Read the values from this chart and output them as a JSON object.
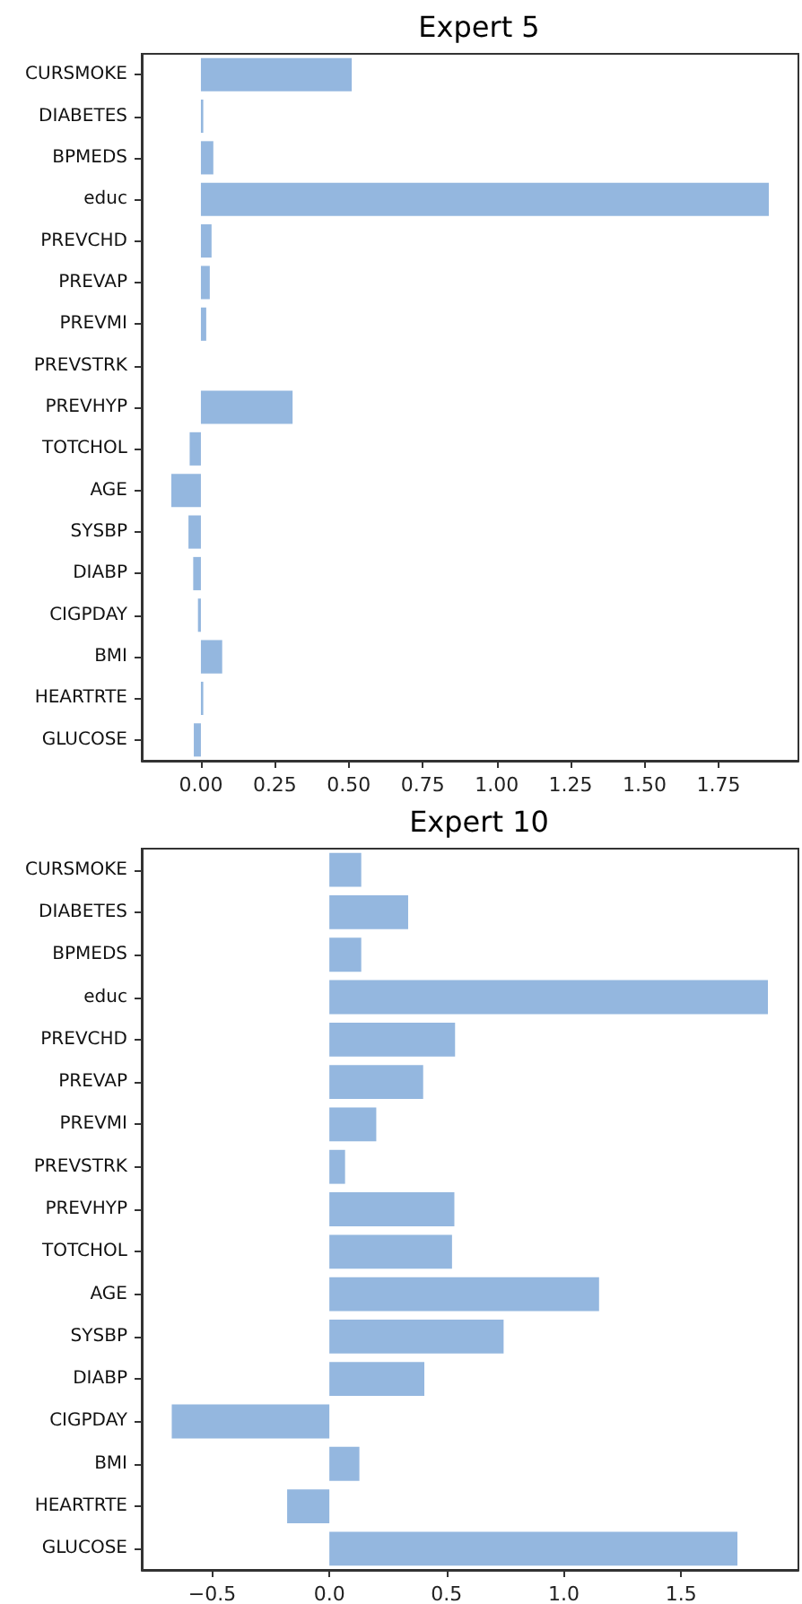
{
  "chart_data": [
    {
      "type": "bar",
      "orientation": "horizontal",
      "title": "Expert 5",
      "categories": [
        "CURSMOKE",
        "DIABETES",
        "BPMEDS",
        "educ",
        "PREVCHD",
        "PREVAP",
        "PREVMI",
        "PREVSTRK",
        "PREVHYP",
        "TOTCHOL",
        "AGE",
        "SYSBP",
        "DIABP",
        "CIGPDAY",
        "BMI",
        "HEARTRTE",
        "GLUCOSE"
      ],
      "values": [
        0.51,
        0.008,
        0.042,
        1.92,
        0.036,
        0.03,
        0.018,
        0,
        0.31,
        -0.038,
        -0.1,
        -0.042,
        -0.026,
        -0.01,
        0.072,
        0.008,
        -0.024
      ],
      "color": "#94b7df",
      "xlim": [
        -0.2,
        2.02
      ],
      "xticks": [
        {
          "value": 0,
          "label": "0.00"
        },
        {
          "value": 0.25,
          "label": "0.25"
        },
        {
          "value": 0.5,
          "label": "0.50"
        },
        {
          "value": 0.75,
          "label": "0.75"
        },
        {
          "value": 1,
          "label": "1.00"
        },
        {
          "value": 1.25,
          "label": "1.25"
        },
        {
          "value": 1.5,
          "label": "1.50"
        },
        {
          "value": 1.75,
          "label": "1.75"
        }
      ],
      "grid": false
    },
    {
      "type": "bar",
      "orientation": "horizontal",
      "title": "Expert 10",
      "categories": [
        "CURSMOKE",
        "DIABETES",
        "BPMEDS",
        "educ",
        "PREVCHD",
        "PREVAP",
        "PREVMI",
        "PREVSTRK",
        "PREVHYP",
        "TOTCHOL",
        "AGE",
        "SYSBP",
        "DIABP",
        "CIGPDAY",
        "BMI",
        "HEARTRTE",
        "GLUCOSE"
      ],
      "values": [
        0.136,
        0.336,
        0.136,
        1.87,
        0.536,
        0.4,
        0.2,
        0.067,
        0.533,
        0.523,
        1.15,
        0.743,
        0.405,
        -0.672,
        0.128,
        -0.18,
        1.74
      ],
      "color": "#94b7df",
      "xlim": [
        -0.8,
        2.0
      ],
      "xticks": [
        {
          "value": -0.5,
          "label": "−0.5"
        },
        {
          "value": 0,
          "label": "0.0"
        },
        {
          "value": 0.5,
          "label": "0.5"
        },
        {
          "value": 1,
          "label": "1.0"
        },
        {
          "value": 1.5,
          "label": "1.5"
        }
      ],
      "grid": false
    }
  ]
}
